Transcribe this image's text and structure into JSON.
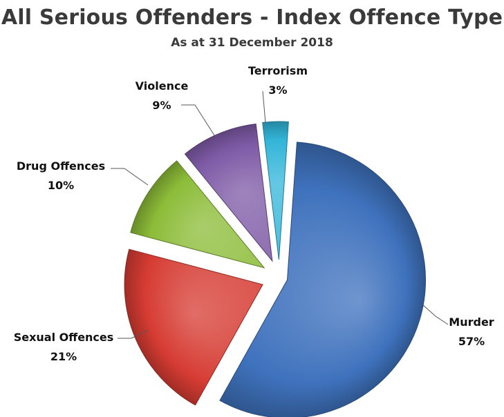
{
  "title": "All Serious Offenders - Index Offence Type",
  "subtitle": "As at 31 December 2018",
  "chart_data": {
    "type": "pie",
    "title": "All Serious Offenders - Index Offence Type",
    "subtitle": "As at 31 December 2018",
    "slices": [
      {
        "label": "Murder",
        "value": 57,
        "pct_text": "57%",
        "color": "#3f72bd"
      },
      {
        "label": "Sexual Offences",
        "value": 21,
        "pct_text": "21%",
        "color": "#d63c33"
      },
      {
        "label": "Drug Offences",
        "value": 10,
        "pct_text": "10%",
        "color": "#8cbc38"
      },
      {
        "label": "Violence",
        "value": 9,
        "pct_text": "9%",
        "color": "#7e5aa6"
      },
      {
        "label": "Terrorism",
        "value": 3,
        "pct_text": "3%",
        "color": "#33b5d9"
      }
    ],
    "legend": "none",
    "data_labels": "outside with leader lines"
  }
}
